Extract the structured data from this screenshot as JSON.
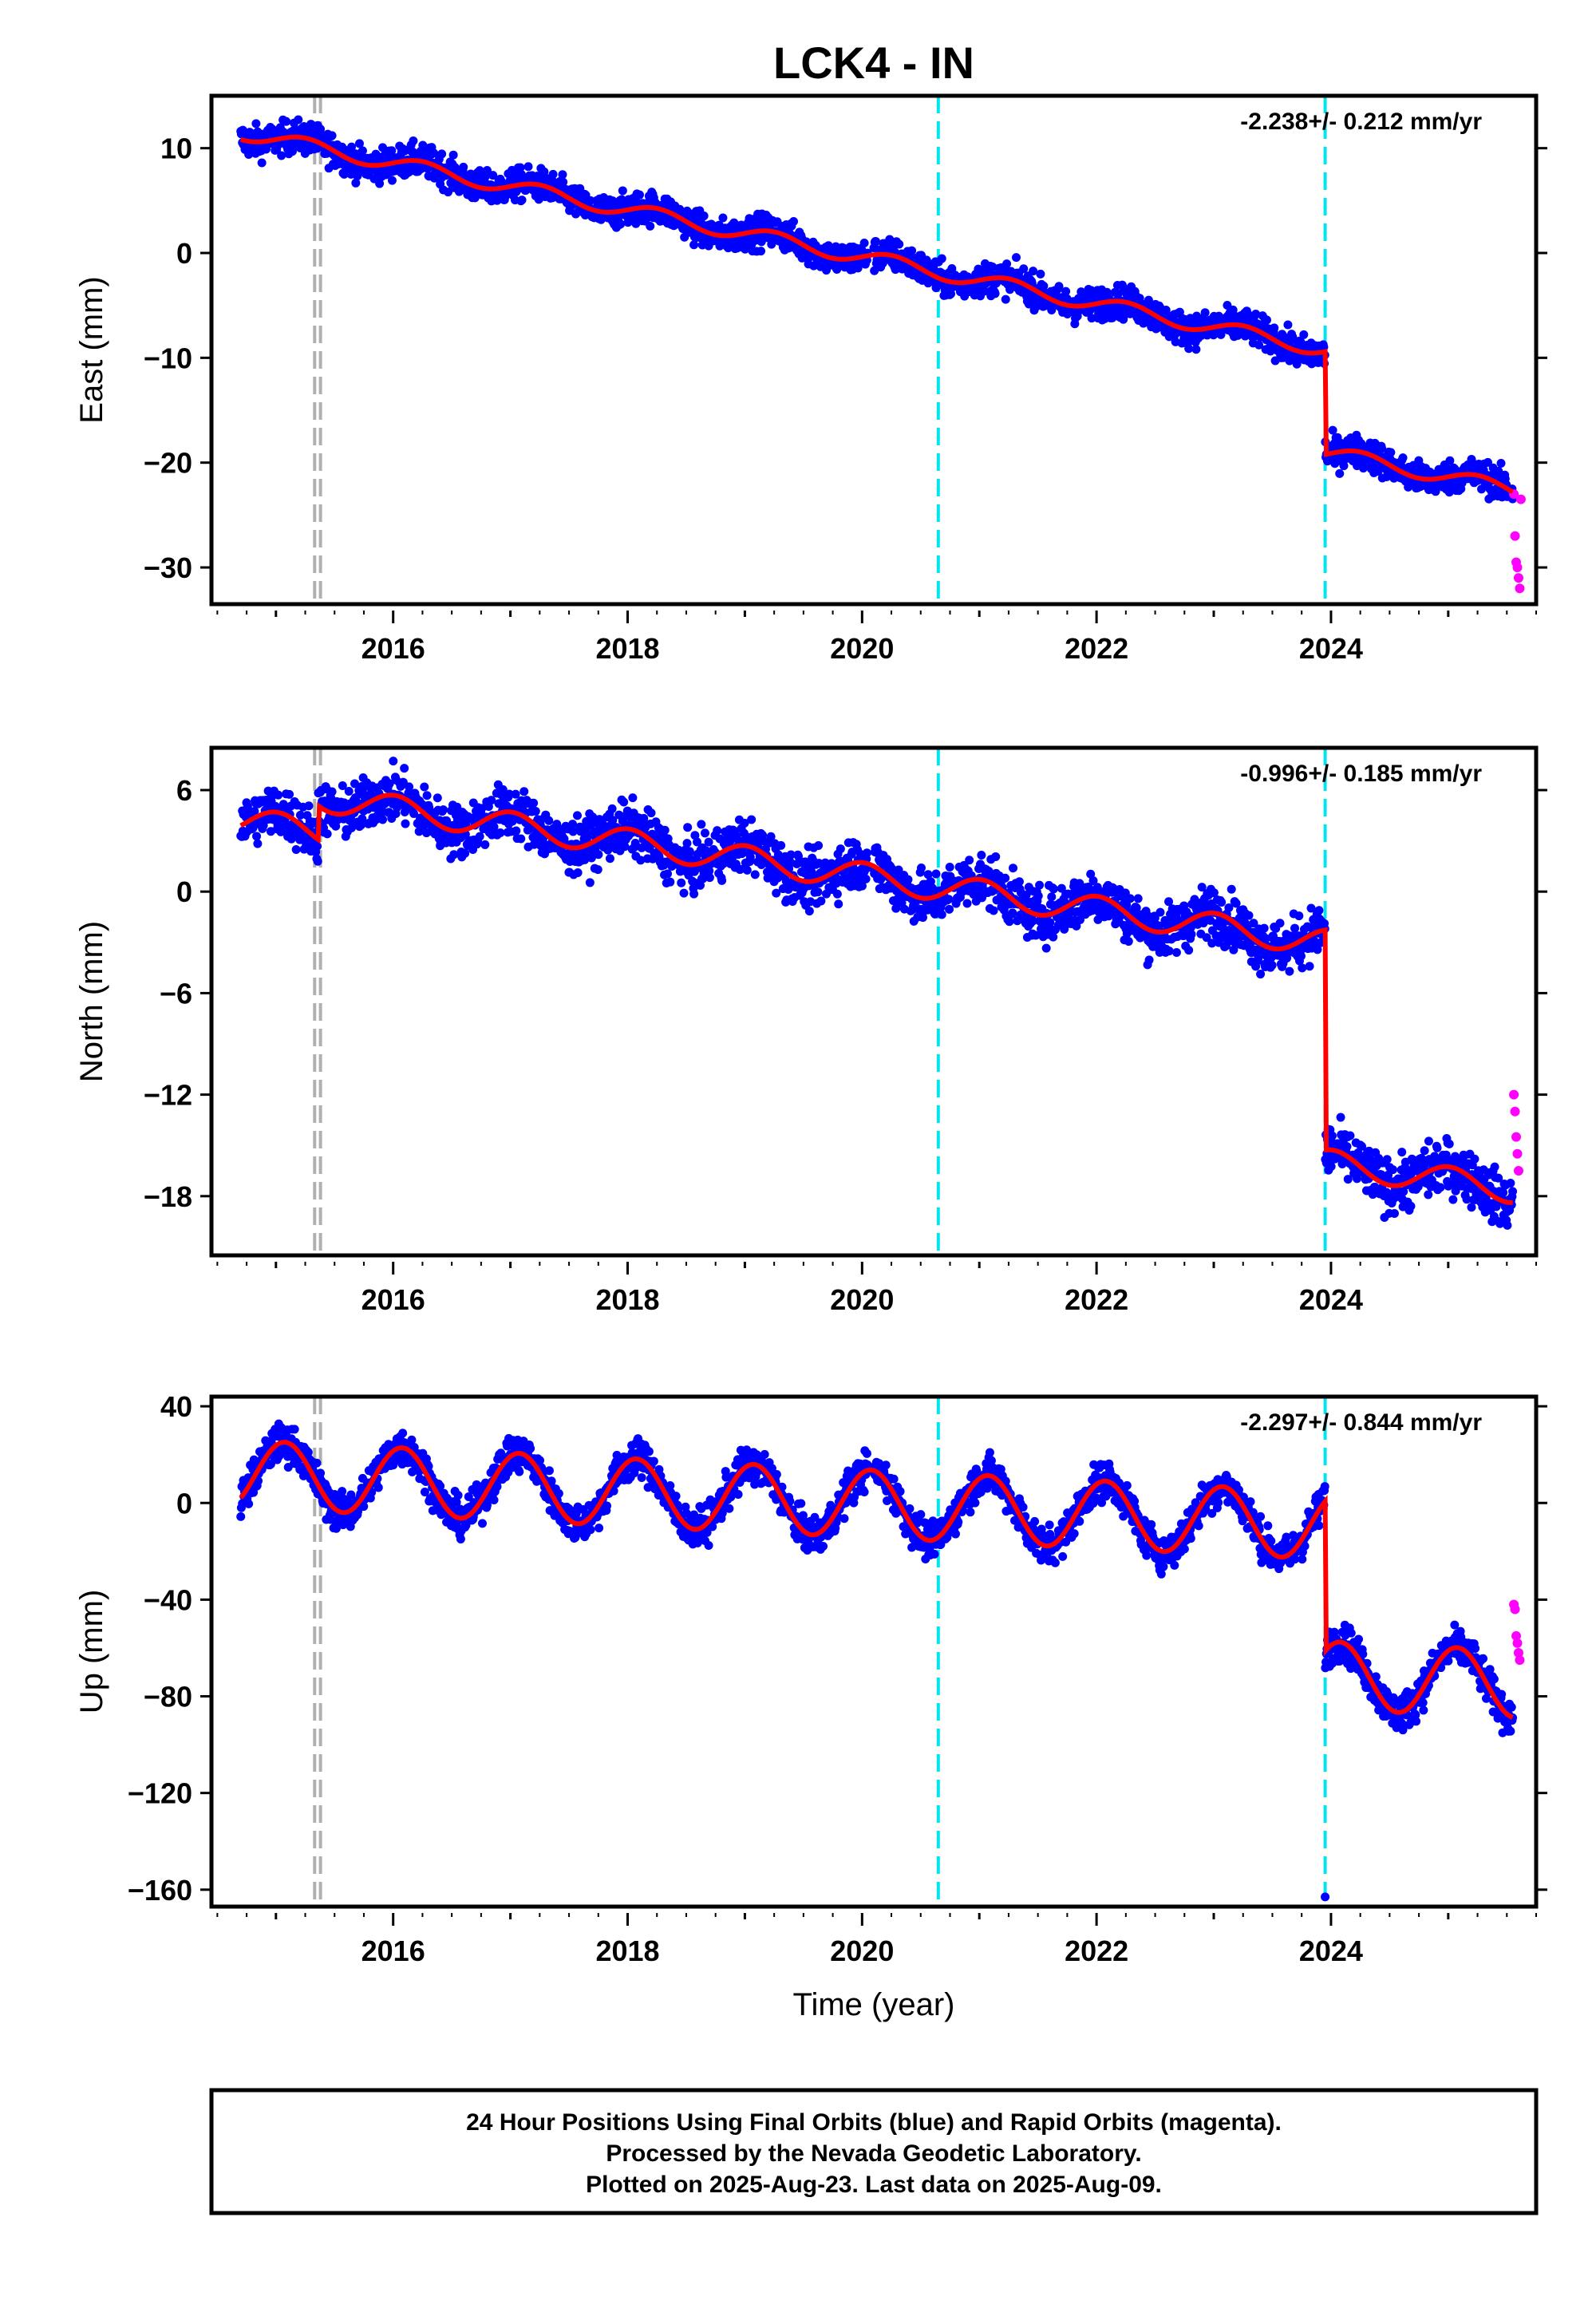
{
  "title": "LCK4 - IN",
  "colors": {
    "final_orbits": "#0000ff",
    "rapid_orbits": "#ff00ff",
    "model_fit": "#ff0000",
    "offset_line": "#00e5ee",
    "equipment_line": "#b0b0b0"
  },
  "chart_data": [
    {
      "type": "scatter",
      "component": "east",
      "ylabel": "East (mm)",
      "xlabel": "",
      "rate_text": "-2.238+/- 0.212 mm/yr",
      "xlim": [
        2014.45,
        2025.75
      ],
      "ylim": [
        -33.5,
        15
      ],
      "x_ticks": [
        2016,
        2018,
        2020,
        2022,
        2024
      ],
      "y_ticks": [
        10,
        0,
        -10,
        -20,
        -30
      ],
      "offsets": [
        2020.65,
        2023.95
      ],
      "equipment_changes": [
        2015.33,
        2015.38
      ],
      "model": {
        "start": 11.5,
        "rate": -2.238,
        "amp": 0.7,
        "phase": 0.0,
        "steps": {
          "2023.95": -9.8
        }
      },
      "final_range": [
        2014.7,
        2025.55
      ],
      "rapid": {
        "x": [
          2025.56,
          2025.57,
          2025.58,
          2025.59,
          2025.6,
          2025.61,
          2025.62
        ],
        "y": [
          -23,
          -27,
          -29.5,
          -30,
          -31,
          -32,
          -23.5
        ]
      }
    },
    {
      "type": "scatter",
      "component": "north",
      "ylabel": "North (mm)",
      "xlabel": "",
      "rate_text": "-0.996+/- 0.185 mm/yr",
      "xlim": [
        2014.45,
        2025.75
      ],
      "ylim": [
        -21.5,
        8.5
      ],
      "x_ticks": [
        2016,
        2018,
        2020,
        2022,
        2024
      ],
      "y_ticks": [
        6,
        0,
        -6,
        -12,
        -18
      ],
      "offsets": [
        2020.65,
        2023.95
      ],
      "equipment_changes": [
        2015.33,
        2015.38
      ],
      "model": {
        "start": 4.2,
        "rate": -0.996,
        "amp": 0.8,
        "phase": 1.5,
        "steps": {
          "2023.95": -13.0,
          "2015.36": 2.0
        }
      },
      "final_range": [
        2014.7,
        2025.55
      ],
      "rapid": {
        "x": [
          2025.56,
          2025.57,
          2025.58,
          2025.59,
          2025.6
        ],
        "y": [
          -12,
          -13,
          -14.5,
          -15.5,
          -16.5
        ]
      }
    },
    {
      "type": "scatter",
      "component": "up",
      "ylabel": "Up (mm)",
      "xlabel": "Time (year)",
      "rate_text": "-2.297+/- 0.844 mm/yr",
      "xlim": [
        2014.45,
        2025.75
      ],
      "ylim": [
        -167,
        44
      ],
      "x_ticks": [
        2016,
        2018,
        2020,
        2022,
        2024
      ],
      "y_ticks": [
        40,
        0,
        -40,
        -80,
        -120,
        -160
      ],
      "offsets": [
        2020.65,
        2023.95
      ],
      "equipment_changes": [
        2015.33,
        2015.38
      ],
      "model": {
        "start": 12,
        "rate": -2.297,
        "amp": 14,
        "phase": 1.1,
        "steps": {
          "2023.95": -62
        }
      },
      "final_range": [
        2014.7,
        2025.55
      ],
      "outlier": {
        "x": 2023.95,
        "y": -163
      },
      "rapid": {
        "x": [
          2025.56,
          2025.57,
          2025.58,
          2025.59,
          2025.6,
          2025.61
        ],
        "y": [
          -42,
          -44,
          -55,
          -58,
          -62,
          -65
        ]
      }
    }
  ],
  "footer": {
    "line1": "24 Hour Positions Using Final Orbits (blue) and Rapid Orbits (magenta).",
    "line2": "Processed by the Nevada Geodetic Laboratory.",
    "line3": "Plotted on 2025-Aug-23. Last data on 2025-Aug-09."
  }
}
